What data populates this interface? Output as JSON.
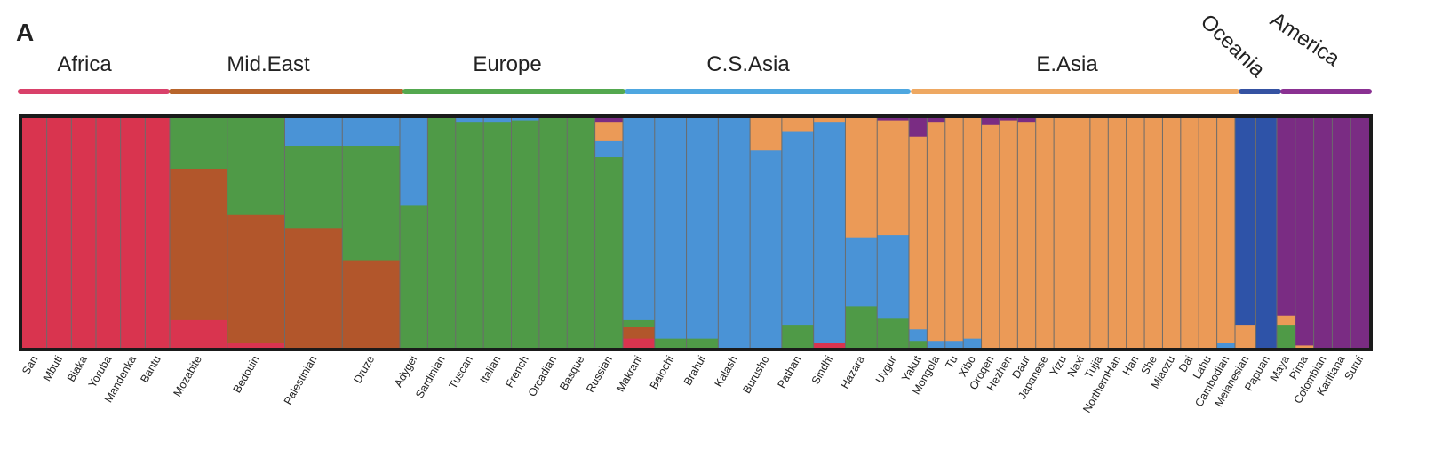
{
  "panel_label": "A",
  "chart_data": {
    "type": "stacked-bar",
    "title": "",
    "xlabel": "",
    "ylabel": "",
    "ylim": [
      0,
      1
    ],
    "grid": false,
    "legend": "none",
    "components": [
      {
        "id": "africa",
        "color": "#d9344f"
      },
      {
        "id": "mideast",
        "color": "#b2562b"
      },
      {
        "id": "europe",
        "color": "#4f9a47"
      },
      {
        "id": "csasia",
        "color": "#4a93d6"
      },
      {
        "id": "easia",
        "color": "#eb9a57"
      },
      {
        "id": "oceania",
        "color": "#2e53a8"
      },
      {
        "id": "america",
        "color": "#7a2c83"
      }
    ],
    "regions": [
      {
        "name": "Africa",
        "color": "#d9416a",
        "populations": [
          "San",
          "Mbuti",
          "Biaka",
          "Yoruba",
          "Mandenka",
          "Bantu"
        ]
      },
      {
        "name": "Mid.East",
        "color": "#b8652c",
        "populations": [
          "Mozabite",
          "Bedouin",
          "Palestinian",
          "Druze"
        ]
      },
      {
        "name": "Europe",
        "color": "#54a84f",
        "populations": [
          "Adygei",
          "Sardinian",
          "Tuscan",
          "Italian",
          "French",
          "Orcadian",
          "Basque",
          "Russian"
        ]
      },
      {
        "name": "C.S.Asia",
        "color": "#4ea7e0",
        "populations": [
          "Makrani",
          "Balochi",
          "Brahui",
          "Kalash",
          "Burusho",
          "Pathan",
          "Sindhi",
          "Hazara",
          "Uygur"
        ]
      },
      {
        "name": "E.Asia",
        "color": "#eea862",
        "populations": [
          "Yakut",
          "Mongola",
          "Tu",
          "Xibo",
          "Oroqen",
          "Hezhen",
          "Daur",
          "Japanese",
          "Yizu",
          "Naxi",
          "Tujia",
          "NorthernHan",
          "Han",
          "She",
          "Miaozu",
          "Dai",
          "Lahu",
          "Cambodian"
        ]
      },
      {
        "name": "Oceania",
        "color": "#3552a2",
        "populations": [
          "Melanesian",
          "Papuan"
        ]
      },
      {
        "name": "America",
        "color": "#8a3192",
        "populations": [
          "Maya",
          "Pima",
          "Colombian",
          "Karitiana",
          "Surui"
        ]
      }
    ],
    "populations": [
      {
        "name": "San",
        "mix": {
          "africa": 1.0
        }
      },
      {
        "name": "Mbuti",
        "mix": {
          "africa": 1.0
        }
      },
      {
        "name": "Biaka",
        "mix": {
          "africa": 1.0
        }
      },
      {
        "name": "Yoruba",
        "mix": {
          "africa": 1.0
        }
      },
      {
        "name": "Mandenka",
        "mix": {
          "africa": 1.0
        }
      },
      {
        "name": "Bantu",
        "mix": {
          "africa": 1.0
        }
      },
      {
        "name": "Mozabite",
        "mix": {
          "europe": 0.22,
          "mideast": 0.66,
          "africa": 0.12
        }
      },
      {
        "name": "Bedouin",
        "mix": {
          "europe": 0.42,
          "mideast": 0.56,
          "africa": 0.02
        }
      },
      {
        "name": "Palestinian",
        "mix": {
          "csasia": 0.12,
          "europe": 0.36,
          "mideast": 0.52
        }
      },
      {
        "name": "Druze",
        "mix": {
          "csasia": 0.12,
          "europe": 0.5,
          "mideast": 0.38
        }
      },
      {
        "name": "Adygei",
        "mix": {
          "csasia": 0.38,
          "europe": 0.62
        }
      },
      {
        "name": "Sardinian",
        "mix": {
          "europe": 1.0
        }
      },
      {
        "name": "Tuscan",
        "mix": {
          "europe": 0.98,
          "csasia": 0.02
        }
      },
      {
        "name": "Italian",
        "mix": {
          "europe": 0.98,
          "csasia": 0.02
        }
      },
      {
        "name": "French",
        "mix": {
          "europe": 0.99,
          "csasia": 0.01
        }
      },
      {
        "name": "Orcadian",
        "mix": {
          "europe": 1.0
        }
      },
      {
        "name": "Basque",
        "mix": {
          "europe": 1.0
        }
      },
      {
        "name": "Russian",
        "mix": {
          "america": 0.02,
          "easia": 0.08,
          "csasia": 0.07,
          "europe": 0.83
        }
      },
      {
        "name": "Makrani",
        "mix": {
          "csasia": 0.88,
          "africa": 0.04,
          "mideast": 0.05,
          "europe": 0.03
        }
      },
      {
        "name": "Balochi",
        "mix": {
          "csasia": 0.96,
          "europe": 0.04
        }
      },
      {
        "name": "Brahui",
        "mix": {
          "csasia": 0.96,
          "europe": 0.04
        }
      },
      {
        "name": "Kalash",
        "mix": {
          "csasia": 1.0
        }
      },
      {
        "name": "Burusho",
        "mix": {
          "easia": 0.14,
          "csasia": 0.86
        }
      },
      {
        "name": "Pathan",
        "mix": {
          "easia": 0.06,
          "csasia": 0.84,
          "europe": 0.1
        }
      },
      {
        "name": "Sindhi",
        "mix": {
          "easia": 0.02,
          "csasia": 0.96,
          "africa": 0.02
        }
      },
      {
        "name": "Hazara",
        "mix": {
          "easia": 0.52,
          "csasia": 0.3,
          "europe": 0.18
        }
      },
      {
        "name": "Uygur",
        "mix": {
          "america": 0.01,
          "easia": 0.5,
          "csasia": 0.36,
          "europe": 0.13
        }
      },
      {
        "name": "Yakut",
        "mix": {
          "america": 0.08,
          "easia": 0.84,
          "csasia": 0.05,
          "europe": 0.03
        }
      },
      {
        "name": "Mongola",
        "mix": {
          "america": 0.02,
          "easia": 0.95,
          "csasia": 0.03
        }
      },
      {
        "name": "Tu",
        "mix": {
          "easia": 0.97,
          "csasia": 0.03
        }
      },
      {
        "name": "Xibo",
        "mix": {
          "easia": 0.96,
          "csasia": 0.04
        }
      },
      {
        "name": "Oroqen",
        "mix": {
          "america": 0.03,
          "easia": 0.97
        }
      },
      {
        "name": "Hezhen",
        "mix": {
          "america": 0.01,
          "easia": 0.99
        }
      },
      {
        "name": "Daur",
        "mix": {
          "america": 0.02,
          "easia": 0.98
        }
      },
      {
        "name": "Japanese",
        "mix": {
          "easia": 1.0
        }
      },
      {
        "name": "Yizu",
        "mix": {
          "easia": 1.0
        }
      },
      {
        "name": "Naxi",
        "mix": {
          "easia": 1.0
        }
      },
      {
        "name": "Tujia",
        "mix": {
          "easia": 1.0
        }
      },
      {
        "name": "NorthernHan",
        "mix": {
          "easia": 1.0
        }
      },
      {
        "name": "Han",
        "mix": {
          "easia": 1.0
        }
      },
      {
        "name": "She",
        "mix": {
          "easia": 1.0
        }
      },
      {
        "name": "Miaozu",
        "mix": {
          "easia": 1.0
        }
      },
      {
        "name": "Dai",
        "mix": {
          "easia": 1.0
        }
      },
      {
        "name": "Lahu",
        "mix": {
          "easia": 1.0
        }
      },
      {
        "name": "Cambodian",
        "mix": {
          "easia": 0.98,
          "csasia": 0.02
        }
      },
      {
        "name": "Melanesian",
        "mix": {
          "oceania": 0.9,
          "easia": 0.1
        }
      },
      {
        "name": "Papuan",
        "mix": {
          "oceania": 1.0
        }
      },
      {
        "name": "Maya",
        "mix": {
          "america": 0.86,
          "europe": 0.1,
          "easia": 0.04
        }
      },
      {
        "name": "Pima",
        "mix": {
          "america": 0.99,
          "easia": 0.01
        }
      },
      {
        "name": "Colombian",
        "mix": {
          "america": 1.0
        }
      },
      {
        "name": "Karitiana",
        "mix": {
          "america": 1.0
        }
      },
      {
        "name": "Surui",
        "mix": {
          "america": 1.0
        }
      }
    ]
  }
}
